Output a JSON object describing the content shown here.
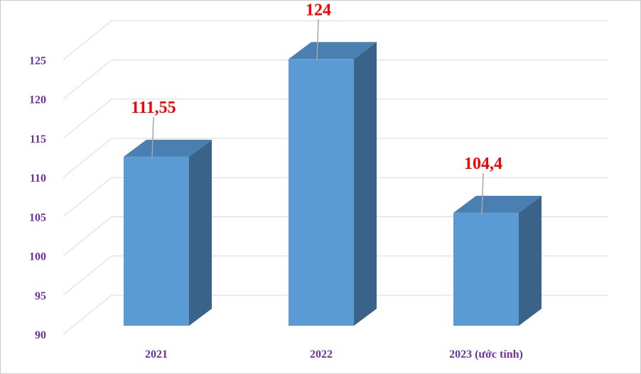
{
  "chart_data": {
    "type": "bar",
    "categories": [
      "2021",
      "2022",
      "2023 (ước tính)"
    ],
    "values": [
      111.55,
      124,
      104.4
    ],
    "data_labels": [
      "111,55",
      "124",
      "104,4"
    ],
    "ylim": [
      90,
      125
    ],
    "yticks": [
      90,
      95,
      100,
      105,
      110,
      115,
      120,
      125
    ],
    "ytick_labels": [
      "90",
      "95",
      "100",
      "105",
      "110",
      "115",
      "120",
      "125"
    ],
    "grid": true,
    "style": "3d-column",
    "legend": "none",
    "title": "",
    "xlabel": "",
    "ylabel": "",
    "colors": {
      "bar_front": "#5b9bd5",
      "bar_top": "#4a7fb1",
      "bar_side": "#3a6389",
      "data_label": "#ff0000",
      "tick_label": "#7030a0",
      "grid": "#d9d9d9"
    }
  }
}
